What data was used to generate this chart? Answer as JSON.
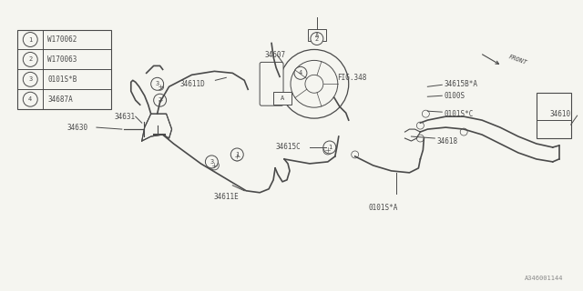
{
  "bg_color": "#f5f5f0",
  "line_color": "#4a4a4a",
  "fig_width": 6.4,
  "fig_height": 3.2,
  "dpi": 100,
  "legend_items": [
    {
      "num": "1",
      "label": "W170062"
    },
    {
      "num": "2",
      "label": "W170063"
    },
    {
      "num": "3",
      "label": "0101S*B"
    },
    {
      "num": "4",
      "label": "34687A"
    }
  ],
  "watermark": "A346001144"
}
